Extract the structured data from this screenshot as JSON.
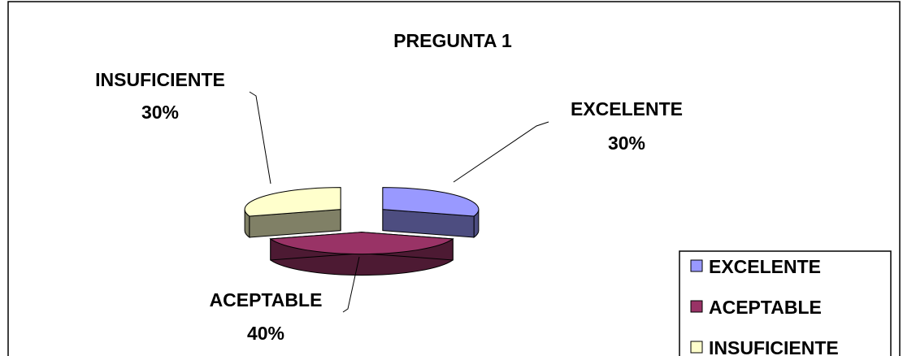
{
  "chart_data": {
    "type": "pie",
    "variant": "3d-exploded",
    "title": "PREGUNTA 1",
    "categories": [
      "EXCELENTE",
      "ACEPTABLE",
      "INSUFICIENTE"
    ],
    "values": [
      30,
      40,
      30
    ],
    "data_labels": [
      {
        "name": "EXCELENTE",
        "value": "30%"
      },
      {
        "name": "ACEPTABLE",
        "value": "40%"
      },
      {
        "name": "INSUFICIENTE",
        "value": "30%"
      }
    ],
    "colors": {
      "EXCELENTE": {
        "top": "#9999ff",
        "side": "#4d4d80"
      },
      "ACEPTABLE": {
        "top": "#993366",
        "side": "#4d1a33"
      },
      "INSUFICIENTE": {
        "top": "#ffffcc",
        "side": "#808066"
      }
    },
    "legend": {
      "position": "bottom-right",
      "entries": [
        "EXCELENTE",
        "ACEPTABLE",
        "INSUFICIENTE"
      ]
    }
  }
}
